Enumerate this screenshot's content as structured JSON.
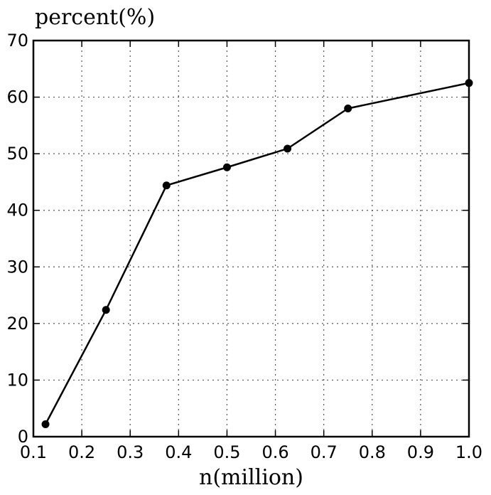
{
  "chart_data": {
    "type": "line",
    "title": "",
    "xlabel": "n(million)",
    "ylabel": "percent(%)",
    "xlim": [
      0.1,
      1.0
    ],
    "ylim": [
      0,
      70
    ],
    "xticks": [
      0.1,
      0.2,
      0.3,
      0.4,
      0.5,
      0.6,
      0.7,
      0.8,
      0.9,
      1.0
    ],
    "xtick_labels": [
      "0.1",
      "0.2",
      "0.3",
      "0.4",
      "0.5",
      "0.6",
      "0.7",
      "0.8",
      "0.9",
      "1.0"
    ],
    "yticks": [
      0,
      10,
      20,
      30,
      40,
      50,
      60,
      70
    ],
    "ytick_labels": [
      "0",
      "10",
      "20",
      "30",
      "40",
      "50",
      "60",
      "70"
    ],
    "grid": true,
    "grid_style": "dotted",
    "series": [
      {
        "color": "#000000",
        "marker": "circle",
        "x": [
          0.125,
          0.25,
          0.375,
          0.5,
          0.625,
          0.75,
          1.0
        ],
        "y": [
          2.2,
          22.4,
          44.4,
          47.6,
          50.9,
          58.0,
          62.5
        ]
      }
    ]
  }
}
